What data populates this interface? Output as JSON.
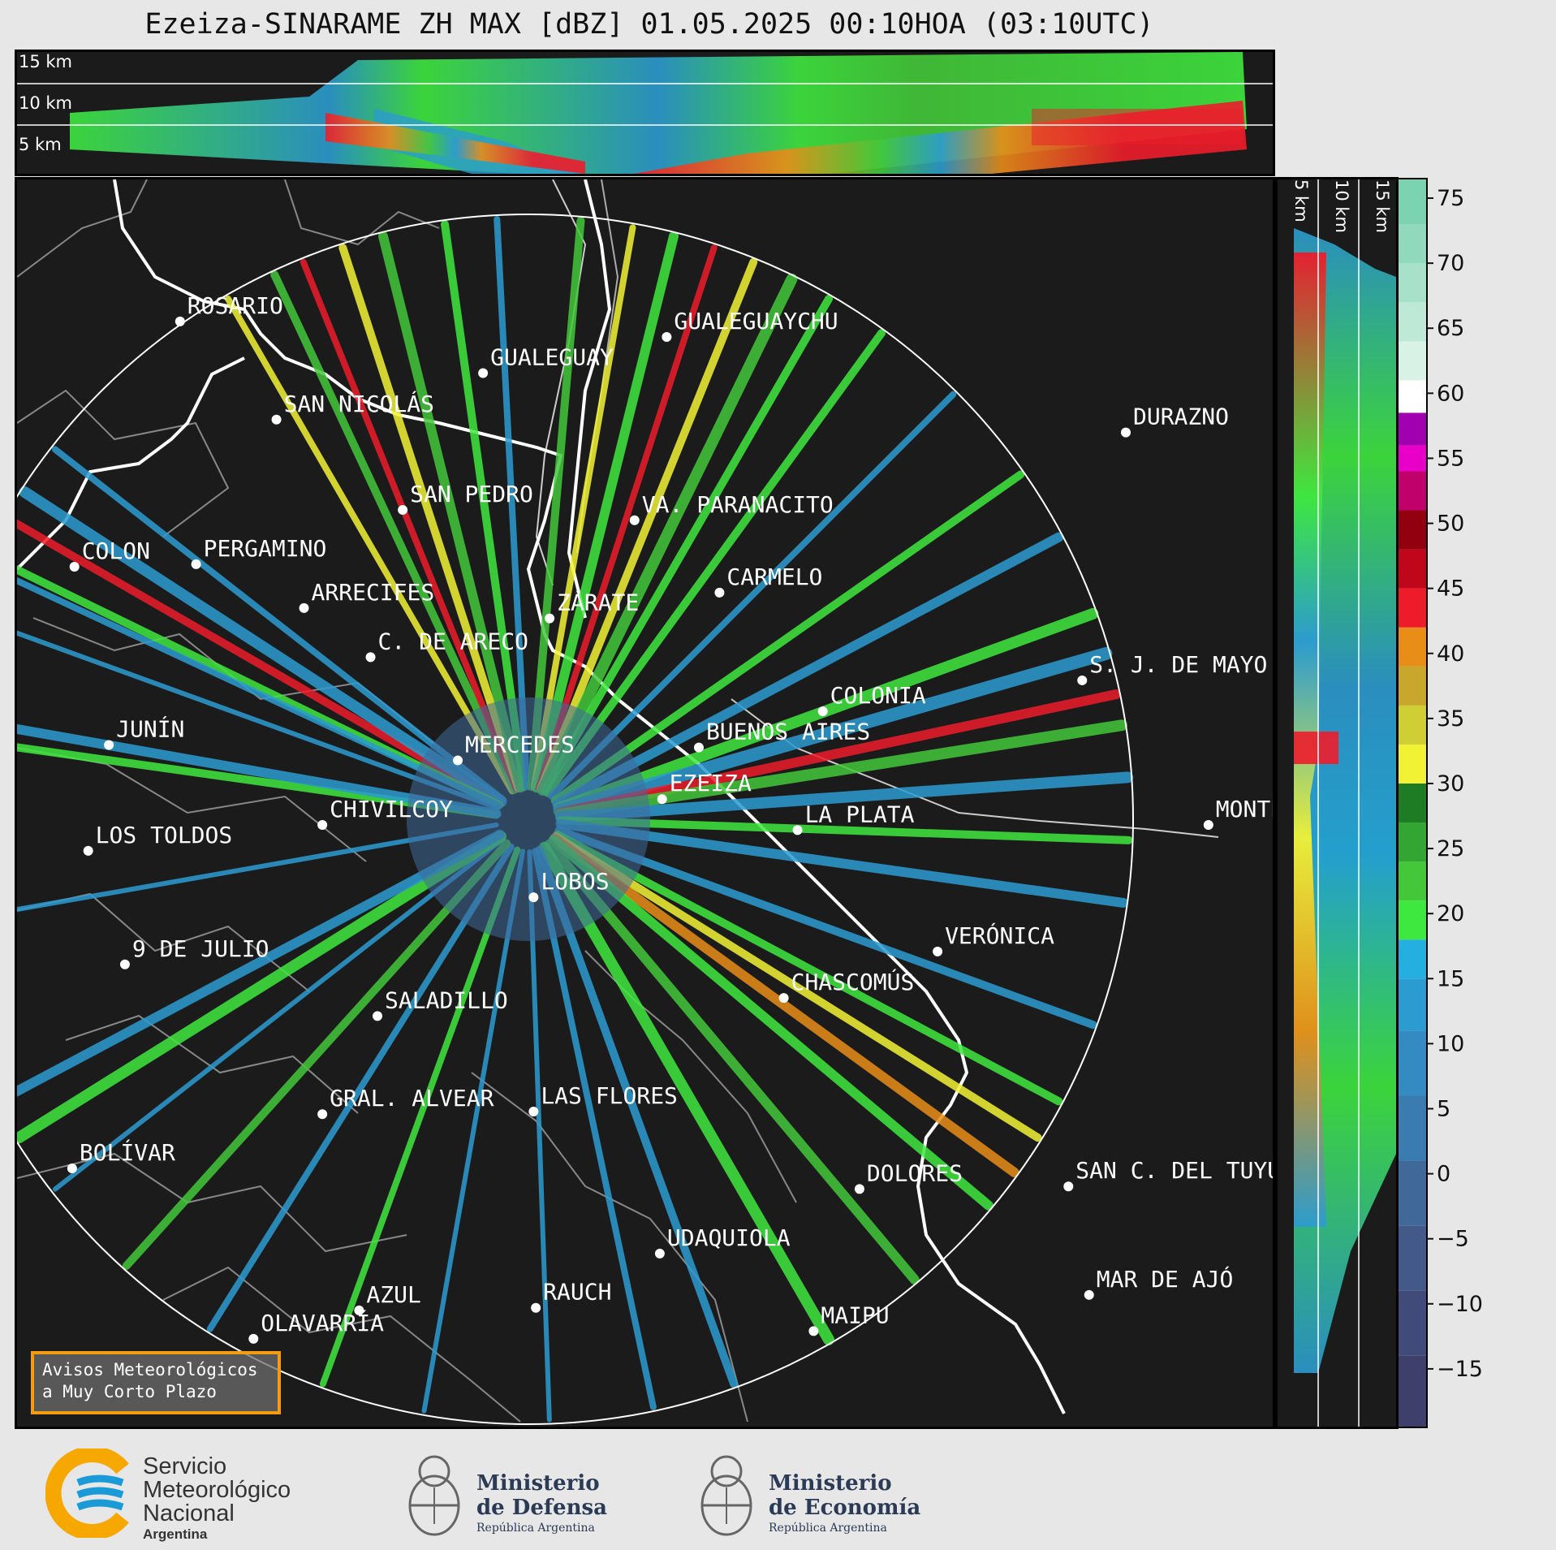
{
  "title": "Ezeiza-SINARAME ZH MAX [dBZ] 01.05.2025 00:10HOA (03:10UTC)",
  "height_labels": {
    "h15": "15 km",
    "h10": "10 km",
    "h5": "5 km"
  },
  "cities": [
    {
      "name": "ROSARIO",
      "lon": -60.64,
      "lat": -32.95
    },
    {
      "name": "GUALEGUAYCHU",
      "lon": -58.52,
      "lat": -33.01
    },
    {
      "name": "GUALEGUAY",
      "lon": -59.32,
      "lat": -33.15
    },
    {
      "name": "SAN NICOLÁS",
      "lon": -60.22,
      "lat": -33.33
    },
    {
      "name": "DURAZNO",
      "lon": -56.52,
      "lat": -33.38
    },
    {
      "name": "SAN PEDRO",
      "lon": -59.67,
      "lat": -33.68
    },
    {
      "name": "VA. PARANACITO",
      "lon": -58.66,
      "lat": -33.72
    },
    {
      "name": "COLON",
      "lon": -61.1,
      "lat": -33.9
    },
    {
      "name": "PERGAMINO",
      "lon": -60.57,
      "lat": -33.89
    },
    {
      "name": "CARMELO",
      "lon": -58.29,
      "lat": -34.0
    },
    {
      "name": "ARRECIFES",
      "lon": -60.1,
      "lat": -34.06
    },
    {
      "name": "ZÁRATE",
      "lon": -59.03,
      "lat": -34.1
    },
    {
      "name": "S. J. DE MAYO",
      "lon": -56.71,
      "lat": -34.34
    },
    {
      "name": "C. DE ARECO",
      "lon": -59.81,
      "lat": -34.25
    },
    {
      "name": "COLONIA",
      "lon": -57.84,
      "lat": -34.46
    },
    {
      "name": "JUNÍN",
      "lon": -60.95,
      "lat": -34.59
    },
    {
      "name": "BUENOS AIRES",
      "lon": -58.38,
      "lat": -34.6
    },
    {
      "name": "MERCEDES",
      "lon": -59.43,
      "lat": -34.65
    },
    {
      "name": "EZEIZA",
      "lon": -58.54,
      "lat": -34.8
    },
    {
      "name": "MONTEVIDEO",
      "lon": -56.16,
      "lat": -34.9
    },
    {
      "name": "CHIVILCOY",
      "lon": -60.02,
      "lat": -34.9
    },
    {
      "name": "LA PLATA",
      "lon": -57.95,
      "lat": -34.92
    },
    {
      "name": "LOS TOLDOS",
      "lon": -61.04,
      "lat": -35.0
    },
    {
      "name": "LOBOS",
      "lon": -59.1,
      "lat": -35.18
    },
    {
      "name": "VERÓNICA",
      "lon": -57.34,
      "lat": -35.39
    },
    {
      "name": "9 DE JULIO",
      "lon": -60.88,
      "lat": -35.44
    },
    {
      "name": "CHASCOMÚS",
      "lon": -58.01,
      "lat": -35.57
    },
    {
      "name": "SALADILLO",
      "lon": -59.78,
      "lat": -35.64
    },
    {
      "name": "GRAL. ALVEAR",
      "lon": -60.02,
      "lat": -36.02
    },
    {
      "name": "LAS FLORES",
      "lon": -59.1,
      "lat": -36.01
    },
    {
      "name": "BOLÍVAR",
      "lon": -61.11,
      "lat": -36.23
    },
    {
      "name": "DOLORES",
      "lon": -57.68,
      "lat": -36.31
    },
    {
      "name": "SAN C. DEL TUYÚ",
      "lon": -56.77,
      "lat": -36.3
    },
    {
      "name": "UDAQUIOLA",
      "lon": -58.55,
      "lat": -36.56
    },
    {
      "name": "MAR DE AJÓ",
      "lon": -56.68,
      "lat": -36.72
    },
    {
      "name": "AZUL",
      "lon": -59.86,
      "lat": -36.78
    },
    {
      "name": "RAUCH",
      "lon": -59.09,
      "lat": -36.77
    },
    {
      "name": "OLAVARRÍA",
      "lon": -60.32,
      "lat": -36.89
    },
    {
      "name": "MAIPU",
      "lon": -57.88,
      "lat": -36.86
    }
  ],
  "colorbar": {
    "ticks": [
      75,
      70,
      65,
      60,
      55,
      50,
      45,
      40,
      35,
      30,
      25,
      20,
      15,
      10,
      5,
      0,
      -5,
      -10,
      -15
    ],
    "tick_labels": [
      "75",
      "70",
      "65",
      "60",
      "55",
      "50",
      "45",
      "40",
      "35",
      "30",
      "25",
      "20",
      "15",
      "10",
      "5",
      "0",
      "−5",
      "−10",
      "−15"
    ],
    "min": -19.5,
    "max": 76.5,
    "colors": [
      {
        "from": -19.5,
        "to": -14,
        "color": "#3f3f6b"
      },
      {
        "from": -14,
        "to": -9,
        "color": "#414b7a"
      },
      {
        "from": -9,
        "to": -4,
        "color": "#42598a"
      },
      {
        "from": -4,
        "to": 1,
        "color": "#40699a"
      },
      {
        "from": 1,
        "to": 6,
        "color": "#3a7bb0"
      },
      {
        "from": 6,
        "to": 11,
        "color": "#338bc2"
      },
      {
        "from": 11,
        "to": 15,
        "color": "#2c9bd0"
      },
      {
        "from": 15,
        "to": 18,
        "color": "#25aee0"
      },
      {
        "from": 18,
        "to": 21,
        "color": "#3fe83f"
      },
      {
        "from": 21,
        "to": 24,
        "color": "#44c83a"
      },
      {
        "from": 24,
        "to": 27,
        "color": "#33a532"
      },
      {
        "from": 27,
        "to": 30,
        "color": "#1e7c25"
      },
      {
        "from": 30,
        "to": 33,
        "color": "#f2f234"
      },
      {
        "from": 33,
        "to": 36,
        "color": "#cfcf35"
      },
      {
        "from": 36,
        "to": 39,
        "color": "#c9a62c"
      },
      {
        "from": 39,
        "to": 42,
        "color": "#e88d18"
      },
      {
        "from": 42,
        "to": 45,
        "color": "#ee1c2b"
      },
      {
        "from": 45,
        "to": 48,
        "color": "#c0061a"
      },
      {
        "from": 48,
        "to": 51,
        "color": "#920010"
      },
      {
        "from": 51,
        "to": 54,
        "color": "#c0006b"
      },
      {
        "from": 54,
        "to": 56,
        "color": "#e800c8"
      },
      {
        "from": 56,
        "to": 58.5,
        "color": "#a000b0"
      },
      {
        "from": 58.5,
        "to": 61,
        "color": "#ffffff"
      },
      {
        "from": 61,
        "to": 64,
        "color": "#d8f2e5"
      },
      {
        "from": 64,
        "to": 67,
        "color": "#bfe9d7"
      },
      {
        "from": 67,
        "to": 70,
        "color": "#a7e1c9"
      },
      {
        "from": 70,
        "to": 73,
        "color": "#90d9bd"
      },
      {
        "from": 73,
        "to": 76.5,
        "color": "#7cd3b2"
      }
    ]
  },
  "notice": {
    "line1": "Avisos Meteorológicos",
    "line2": "a Muy Corto Plazo"
  },
  "logos": {
    "smn": {
      "line1": "Servicio",
      "line2": "Meteorológico",
      "line3": "Nacional",
      "line4": "Argentina"
    },
    "defensa": {
      "line1": "Ministerio",
      "line2": "de Defensa",
      "sub": "República Argentina"
    },
    "economia": {
      "line1": "Ministerio",
      "line2": "de Economía",
      "sub": "República Argentina"
    }
  },
  "colors": {
    "background": "#1b1b1b",
    "page": "#e7e7e7",
    "border": "#000000",
    "notice_border": "#f39c12",
    "smn_blue": "#1a9ad6",
    "smn_yellow": "#f6a800"
  }
}
